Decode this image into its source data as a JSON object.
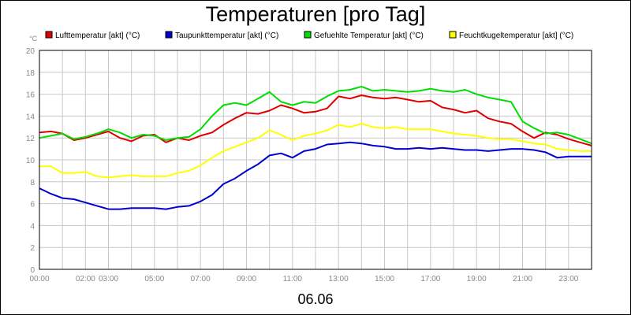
{
  "chart_data": {
    "type": "line",
    "title": "Temperaturen [pro Tag]",
    "unit_label": "°C",
    "date_label": "06.06",
    "ylim": [
      0,
      20
    ],
    "y_ticks": [
      "0",
      "2",
      "4",
      "6",
      "8",
      "10",
      "12",
      "14",
      "16",
      "18",
      "20"
    ],
    "x_ticks": [
      "00:00",
      "02:00",
      "03:00",
      "05:00",
      "07:00",
      "09:00",
      "11:00",
      "13:00",
      "15:00",
      "17:00",
      "19:00",
      "21:00",
      "23:00"
    ],
    "x_tick_hours": [
      0,
      2,
      3,
      5,
      7,
      9,
      11,
      13,
      15,
      17,
      19,
      21,
      23
    ],
    "grid": true,
    "legend_position": "top",
    "series": [
      {
        "name": "Lufttemperatur [akt] (°C)",
        "color": "#e00000",
        "x": [
          0,
          0.5,
          1,
          1.5,
          2,
          2.5,
          3,
          3.5,
          4,
          4.5,
          5,
          5.5,
          6,
          6.5,
          7,
          7.5,
          8,
          8.5,
          9,
          9.5,
          10,
          10.5,
          11,
          11.5,
          12,
          12.5,
          13,
          13.5,
          14,
          14.5,
          15,
          15.5,
          16,
          16.5,
          17,
          17.5,
          18,
          18.5,
          19,
          19.5,
          20,
          20.5,
          21,
          21.5,
          22,
          22.5,
          23,
          23.5,
          24
        ],
        "y": [
          12.5,
          12.6,
          12.4,
          11.8,
          12.0,
          12.3,
          12.6,
          12.0,
          11.7,
          12.2,
          12.3,
          11.6,
          12.0,
          11.8,
          12.2,
          12.5,
          13.2,
          13.8,
          14.3,
          14.2,
          14.5,
          15.0,
          14.7,
          14.3,
          14.4,
          14.7,
          15.8,
          15.6,
          15.9,
          15.7,
          15.6,
          15.7,
          15.5,
          15.3,
          15.4,
          14.8,
          14.6,
          14.3,
          14.5,
          13.8,
          13.5,
          13.3,
          12.6,
          12.0,
          12.5,
          12.3,
          11.9,
          11.6,
          11.3
        ]
      },
      {
        "name": "Taupunkttemperatur [akt] (°C)",
        "color": "#0000d0",
        "x": [
          0,
          0.5,
          1,
          1.5,
          2,
          2.5,
          3,
          3.5,
          4,
          4.5,
          5,
          5.5,
          6,
          6.5,
          7,
          7.5,
          8,
          8.5,
          9,
          9.5,
          10,
          10.5,
          11,
          11.5,
          12,
          12.5,
          13,
          13.5,
          14,
          14.5,
          15,
          15.5,
          16,
          16.5,
          17,
          17.5,
          18,
          18.5,
          19,
          19.5,
          20,
          20.5,
          21,
          21.5,
          22,
          22.5,
          23,
          23.5,
          24
        ],
        "y": [
          7.4,
          6.9,
          6.5,
          6.4,
          6.1,
          5.8,
          5.5,
          5.5,
          5.6,
          5.6,
          5.6,
          5.5,
          5.7,
          5.8,
          6.2,
          6.8,
          7.8,
          8.3,
          9.0,
          9.6,
          10.4,
          10.6,
          10.2,
          10.8,
          11.0,
          11.4,
          11.5,
          11.6,
          11.5,
          11.3,
          11.2,
          11.0,
          11.0,
          11.1,
          11.0,
          11.1,
          11.0,
          10.9,
          10.9,
          10.8,
          10.9,
          11.0,
          11.0,
          10.9,
          10.7,
          10.2,
          10.3,
          10.3,
          10.3
        ]
      },
      {
        "name": "Gefuehlte Temperatur [akt] (°C)",
        "color": "#00dd00",
        "x": [
          0,
          0.5,
          1,
          1.5,
          2,
          2.5,
          3,
          3.5,
          4,
          4.5,
          5,
          5.5,
          6,
          6.5,
          7,
          7.5,
          8,
          8.5,
          9,
          9.5,
          10,
          10.5,
          11,
          11.5,
          12,
          12.5,
          13,
          13.5,
          14,
          14.5,
          15,
          15.5,
          16,
          16.5,
          17,
          17.5,
          18,
          18.5,
          19,
          19.5,
          20,
          20.5,
          21,
          21.5,
          22,
          22.5,
          23,
          23.5,
          24
        ],
        "y": [
          12.0,
          12.2,
          12.4,
          11.9,
          12.1,
          12.4,
          12.8,
          12.5,
          12.0,
          12.3,
          12.2,
          11.8,
          12.0,
          12.1,
          12.8,
          14.0,
          15.0,
          15.2,
          15.0,
          15.6,
          16.2,
          15.3,
          15.0,
          15.3,
          15.2,
          15.8,
          16.3,
          16.4,
          16.7,
          16.3,
          16.4,
          16.3,
          16.2,
          16.3,
          16.5,
          16.3,
          16.2,
          16.4,
          16.0,
          15.7,
          15.5,
          15.3,
          13.5,
          12.9,
          12.4,
          12.5,
          12.3,
          11.9,
          11.5
        ]
      },
      {
        "name": "Feuchtkugeltemperatur [akt] (°C)",
        "color": "#ffff00",
        "x": [
          0,
          0.5,
          1,
          1.5,
          2,
          2.5,
          3,
          3.5,
          4,
          4.5,
          5,
          5.5,
          6,
          6.5,
          7,
          7.5,
          8,
          8.5,
          9,
          9.5,
          10,
          10.5,
          11,
          11.5,
          12,
          12.5,
          13,
          13.5,
          14,
          14.5,
          15,
          15.5,
          16,
          16.5,
          17,
          17.5,
          18,
          18.5,
          19,
          19.5,
          20,
          20.5,
          21,
          21.5,
          22,
          22.5,
          23,
          23.5,
          24
        ],
        "y": [
          9.4,
          9.4,
          8.8,
          8.8,
          8.9,
          8.5,
          8.4,
          8.5,
          8.6,
          8.5,
          8.5,
          8.5,
          8.8,
          9.0,
          9.5,
          10.2,
          10.8,
          11.2,
          11.6,
          12.0,
          12.7,
          12.3,
          11.8,
          12.2,
          12.4,
          12.7,
          13.2,
          13.0,
          13.3,
          13.0,
          12.9,
          13.0,
          12.8,
          12.8,
          12.8,
          12.6,
          12.4,
          12.3,
          12.2,
          12.0,
          11.9,
          11.9,
          11.7,
          11.5,
          11.4,
          11.0,
          10.9,
          10.8,
          10.8
        ]
      }
    ]
  }
}
